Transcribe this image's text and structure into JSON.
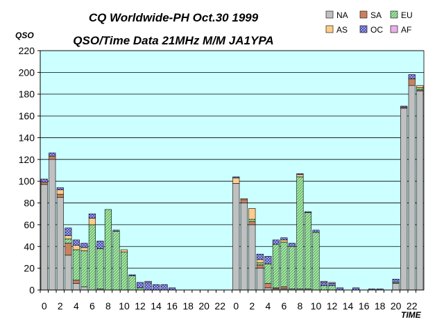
{
  "chart_data": {
    "type": "bar",
    "stacked": true,
    "title": "CQ Worldwide-PH Oct.30 1999",
    "subtitle": "QSO/Time Data 21MHz M/M JA1YPA",
    "xlabel": "TIME",
    "ylabel": "QSO",
    "ylim": [
      0,
      220
    ],
    "yticks": [
      0,
      20,
      40,
      60,
      80,
      100,
      120,
      140,
      160,
      180,
      200,
      220
    ],
    "categories": [
      "0",
      "1",
      "2",
      "3",
      "4",
      "5",
      "6",
      "7",
      "8",
      "9",
      "10",
      "11",
      "12",
      "13",
      "14",
      "15",
      "16",
      "17",
      "18",
      "19",
      "20",
      "21",
      "22",
      "23",
      "0",
      "1",
      "2",
      "3",
      "4",
      "5",
      "6",
      "7",
      "8",
      "9",
      "10",
      "11",
      "12",
      "13",
      "14",
      "15",
      "16",
      "17",
      "18",
      "19",
      "20",
      "21",
      "22",
      "23"
    ],
    "tick_labels": [
      "0",
      "",
      "2",
      "",
      "4",
      "",
      "6",
      "",
      "8",
      "",
      "10",
      "",
      "12",
      "",
      "14",
      "",
      "16",
      "",
      "18",
      "",
      "20",
      "",
      "22",
      "",
      "0",
      "",
      "2",
      "",
      "4",
      "",
      "6",
      "",
      "8",
      "",
      "10",
      "",
      "12",
      "",
      "14",
      "",
      "16",
      "",
      "18",
      "",
      "20",
      "",
      "22",
      ""
    ],
    "grid": "horizontal",
    "legend": "top-right",
    "plot_background": "#ccffff",
    "series": [
      {
        "name": "NA",
        "color": "#c0c0c0",
        "pattern": "solid",
        "values": [
          97,
          120,
          85,
          32,
          6,
          3,
          0,
          1,
          0,
          0,
          0,
          0,
          0,
          0,
          0,
          0,
          0,
          0,
          0,
          0,
          0,
          0,
          0,
          0,
          98,
          80,
          60,
          20,
          2,
          1,
          1,
          1,
          1,
          1,
          0,
          0,
          0,
          0,
          0,
          0,
          0,
          0,
          0,
          0,
          6,
          167,
          188,
          183
        ]
      },
      {
        "name": "SA",
        "color": "#cc8060",
        "pattern": "solid",
        "values": [
          2,
          3,
          3,
          11,
          3,
          0,
          0,
          0,
          0,
          0,
          0,
          0,
          0,
          0,
          0,
          0,
          0,
          0,
          0,
          0,
          0,
          0,
          0,
          0,
          0,
          3,
          3,
          3,
          4,
          1,
          2,
          0,
          0,
          0,
          0,
          0,
          0,
          0,
          0,
          0,
          0,
          0,
          0,
          0,
          0,
          1,
          6,
          1
        ]
      },
      {
        "name": "EU",
        "color": "#a6e8a6",
        "pattern": "hatch",
        "values": [
          0,
          0,
          0,
          4,
          28,
          33,
          60,
          37,
          74,
          54,
          35,
          13,
          2,
          0,
          0,
          0,
          0,
          0,
          0,
          0,
          0,
          0,
          0,
          0,
          0,
          0,
          2,
          2,
          18,
          40,
          41,
          39,
          103,
          70,
          53,
          4,
          4,
          0,
          0,
          0,
          0,
          0,
          0,
          0,
          1,
          0,
          0,
          2
        ]
      },
      {
        "name": "AS",
        "color": "#ffcc88",
        "pattern": "solid",
        "values": [
          0,
          0,
          4,
          3,
          4,
          3,
          6,
          0,
          0,
          0,
          2,
          0,
          0,
          0,
          0,
          0,
          0,
          0,
          0,
          0,
          0,
          0,
          0,
          0,
          5,
          1,
          10,
          3,
          0,
          0,
          2,
          0,
          2,
          0,
          0,
          0,
          0,
          0,
          0,
          0,
          0,
          0,
          0,
          0,
          0,
          0,
          0,
          2
        ]
      },
      {
        "name": "OC",
        "color": "#a0a0e8",
        "pattern": "check",
        "values": [
          3,
          3,
          2,
          7,
          5,
          4,
          4,
          7,
          0,
          1,
          0,
          1,
          5,
          7,
          5,
          5,
          2,
          0,
          0,
          0,
          0,
          0,
          0,
          0,
          1,
          0,
          0,
          5,
          7,
          4,
          2,
          3,
          1,
          1,
          2,
          3,
          2,
          2,
          0,
          2,
          0,
          1,
          1,
          0,
          3,
          1,
          4,
          0
        ]
      },
      {
        "name": "AF",
        "color": "#e8b0e8",
        "pattern": "solid",
        "values": [
          0,
          0,
          0,
          0,
          0,
          0,
          0,
          0,
          0,
          0,
          0,
          0,
          0,
          1,
          0,
          0,
          0,
          0,
          0,
          0,
          0,
          0,
          0,
          0,
          0,
          0,
          0,
          0,
          0,
          0,
          0,
          0,
          0,
          0,
          0,
          1,
          1,
          0,
          0,
          0,
          0,
          0,
          0,
          0,
          0,
          0,
          0,
          0
        ]
      }
    ]
  }
}
